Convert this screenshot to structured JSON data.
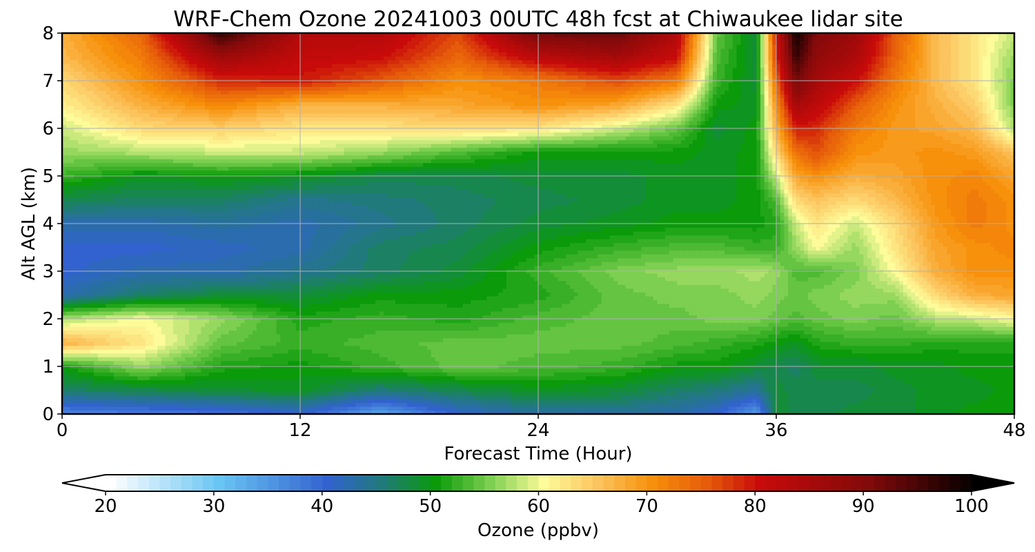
{
  "chart_data": {
    "type": "heatmap",
    "title": "WRF-Chem Ozone  20241003 00UTC 48h fcst at Chiwaukee lidar site",
    "xlabel": "Forecast Time (Hour)",
    "ylabel": "Alt AGL (km)",
    "xlim": [
      0,
      48
    ],
    "ylim": [
      0,
      8
    ],
    "x_ticks": [
      "0",
      "12",
      "24",
      "36",
      "48"
    ],
    "y_ticks": [
      "0",
      "1",
      "2",
      "3",
      "4",
      "5",
      "6",
      "7",
      "8"
    ],
    "grid": true,
    "z_units": "ppbv",
    "x": [
      0,
      4,
      8,
      12,
      16,
      20,
      24,
      28,
      31,
      33,
      35,
      36,
      37,
      38,
      40,
      42,
      44,
      46,
      48
    ],
    "y": [
      0,
      0.5,
      1,
      1.5,
      2,
      2.5,
      3,
      3.5,
      4,
      4.5,
      5,
      5.5,
      6,
      6.5,
      7,
      7.5,
      8
    ],
    "z": [
      [
        36,
        37,
        38,
        40,
        33,
        40,
        43,
        43,
        42,
        40,
        34,
        48,
        47,
        47,
        48,
        48,
        49,
        50,
        50
      ],
      [
        46,
        47,
        48,
        49,
        45,
        47,
        49,
        48,
        46,
        45,
        43,
        48,
        47,
        47,
        47,
        48,
        49,
        49,
        50
      ],
      [
        50,
        56,
        51,
        50,
        52,
        54,
        53,
        52,
        50,
        50,
        48,
        47,
        46,
        48,
        48,
        49,
        49,
        50,
        50
      ],
      [
        67,
        62,
        54,
        52,
        53,
        54,
        54,
        54,
        53,
        52,
        51,
        50,
        49,
        51,
        52,
        52,
        51,
        51,
        51
      ],
      [
        57,
        60,
        56,
        51,
        52,
        51,
        53,
        54,
        54,
        55,
        55,
        54,
        53,
        54,
        55,
        54,
        57,
        58,
        60
      ],
      [
        42,
        46,
        48,
        48,
        50,
        50,
        51,
        54,
        55,
        55,
        56,
        55,
        54,
        55,
        56,
        56,
        63,
        67,
        68
      ],
      [
        40,
        42,
        42,
        44,
        46,
        48,
        52,
        55,
        56,
        56,
        57,
        56,
        53,
        53,
        55,
        60,
        67,
        70,
        70
      ],
      [
        40,
        40,
        41,
        42,
        46,
        47,
        50,
        52,
        53,
        53,
        52,
        52,
        56,
        60,
        56,
        62,
        68,
        70,
        71
      ],
      [
        42,
        42,
        43,
        42,
        44,
        46,
        48,
        49,
        50,
        50,
        50,
        51,
        58,
        62,
        58,
        63,
        69,
        72,
        70
      ],
      [
        47,
        46,
        46,
        44,
        45,
        46,
        47,
        48,
        49,
        49,
        50,
        53,
        63,
        65,
        63,
        66,
        70,
        72,
        70
      ],
      [
        52,
        49,
        50,
        49,
        47,
        47,
        48,
        48,
        49,
        49,
        50,
        58,
        68,
        70,
        67,
        68,
        70,
        71,
        68
      ],
      [
        56,
        57,
        58,
        58,
        56,
        53,
        50,
        50,
        50,
        49,
        50,
        63,
        73,
        76,
        70,
        69,
        70,
        69,
        65
      ],
      [
        58,
        63,
        64,
        62,
        62,
        63,
        62,
        58,
        54,
        48,
        50,
        67,
        79,
        78,
        72,
        69,
        68,
        66,
        57
      ],
      [
        61,
        67,
        71,
        67,
        67,
        68,
        70,
        68,
        62,
        50,
        49,
        70,
        85,
        82,
        75,
        70,
        67,
        64,
        55
      ],
      [
        63,
        70,
        78,
        79,
        75,
        70,
        72,
        76,
        72,
        52,
        48,
        74,
        91,
        85,
        80,
        72,
        66,
        62,
        55
      ],
      [
        66,
        72,
        86,
        81,
        80,
        74,
        82,
        85,
        80,
        53,
        48,
        78,
        96,
        88,
        84,
        74,
        66,
        62,
        56
      ],
      [
        67,
        74,
        96,
        83,
        83,
        76,
        91,
        92,
        83,
        54,
        48,
        79,
        99,
        90,
        86,
        75,
        66,
        62,
        58
      ]
    ],
    "colorbar": {
      "label": "Ozone  (ppbv)",
      "min": 20,
      "max": 100,
      "ticks": [
        "20",
        "30",
        "40",
        "50",
        "60",
        "70",
        "80",
        "90",
        "100"
      ],
      "extend": "both",
      "colors": [
        {
          "v": 20,
          "c": "#ffffff"
        },
        {
          "v": 30,
          "c": "#69c5f4"
        },
        {
          "v": 40,
          "c": "#3262cf"
        },
        {
          "v": 45,
          "c": "#207a7c"
        },
        {
          "v": 50,
          "c": "#0a9a0a"
        },
        {
          "v": 55,
          "c": "#7ccf50"
        },
        {
          "v": 60,
          "c": "#fdfb9a"
        },
        {
          "v": 65,
          "c": "#fcc45e"
        },
        {
          "v": 70,
          "c": "#f7900a"
        },
        {
          "v": 75,
          "c": "#e65c0a"
        },
        {
          "v": 80,
          "c": "#c80a0a"
        },
        {
          "v": 90,
          "c": "#820a0a"
        },
        {
          "v": 100,
          "c": "#000000"
        }
      ]
    }
  }
}
